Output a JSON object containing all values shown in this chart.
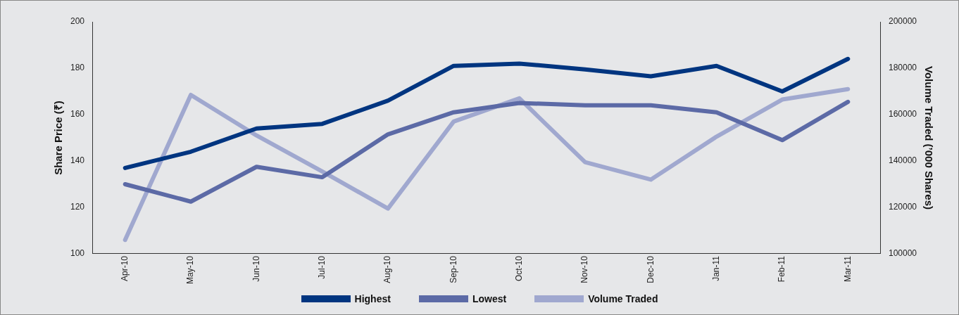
{
  "chart_data": {
    "type": "line",
    "ylabel": "Share Price (₹)",
    "y2label": "Volume Traded (’000 Shares)",
    "categories": [
      "Apr-10",
      "May-10",
      "Jun-10",
      "Jul-10",
      "Aug-10",
      "Sep-10",
      "Oct-10",
      "Nov-10",
      "Dec-10",
      "Jan-11",
      "Feb-11",
      "Mar-11"
    ],
    "series": [
      {
        "name": "Highest",
        "color": "#003580",
        "values": [
          137,
          144,
          154,
          156,
          166,
          181,
          182,
          179.5,
          176.5,
          181,
          170,
          184
        ]
      },
      {
        "name": "Lowest",
        "color": "#5c6aa6",
        "values": [
          130,
          122.5,
          137.5,
          133,
          151.5,
          161,
          165,
          164,
          164,
          161,
          149,
          165.5
        ]
      },
      {
        "name": "Volume Traded",
        "color": "#a0a8cf",
        "axis": "y2",
        "values": [
          106000,
          168500,
          151000,
          135500,
          119500,
          157000,
          167000,
          139500,
          132000,
          150500,
          166500,
          171000
        ]
      }
    ],
    "ylim": [
      100,
      200
    ],
    "yticks": [
      100,
      120,
      140,
      160,
      180,
      200
    ],
    "y2lim": [
      100000,
      200000
    ],
    "y2ticks": [
      100000,
      120000,
      140000,
      160000,
      180000,
      200000
    ],
    "grid": false,
    "legend": "bottom",
    "marker": "none",
    "line_style": "solid"
  }
}
